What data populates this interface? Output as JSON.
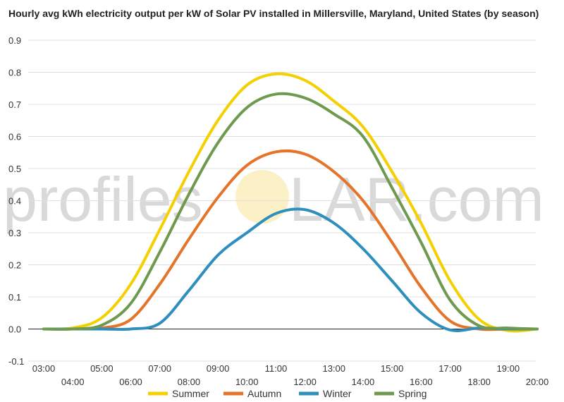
{
  "chart_data": {
    "type": "line",
    "title": "Hourly avg kWh electricity output per kW of Solar PV installed in Millersville, Maryland, United States (by season)",
    "xlabel": "",
    "ylabel": "",
    "x_ticks": [
      "03:00",
      "04:00",
      "05:00",
      "06:00",
      "07:00",
      "08:00",
      "09:00",
      "10:00",
      "11:00",
      "12:00",
      "13:00",
      "14:00",
      "15:00",
      "16:00",
      "17:00",
      "18:00",
      "19:00",
      "20:00"
    ],
    "y_ticks": [
      "0.9",
      "0.8",
      "0.7",
      "0.6",
      "0.5",
      "0.4",
      "0.3",
      "0.2",
      "0.1",
      "0.0",
      "-0.1"
    ],
    "ylim": [
      -0.1,
      0.9
    ],
    "grid": true,
    "legend_position": "bottom",
    "series": [
      {
        "name": "Summer",
        "color": "#f5d000",
        "values": [
          0.0,
          0.003,
          0.035,
          0.14,
          0.31,
          0.49,
          0.65,
          0.76,
          0.795,
          0.775,
          0.71,
          0.63,
          0.49,
          0.33,
          0.15,
          0.03,
          -0.005,
          0.0
        ]
      },
      {
        "name": "Autumn",
        "color": "#e3742a",
        "values": [
          0.0,
          0.0,
          0.003,
          0.03,
          0.14,
          0.28,
          0.41,
          0.51,
          0.552,
          0.545,
          0.49,
          0.4,
          0.27,
          0.13,
          0.025,
          0.0,
          0.0,
          0.0
        ]
      },
      {
        "name": "Winter",
        "color": "#2e8fbd",
        "values": [
          0.0,
          0.0,
          0.0,
          0.0,
          0.018,
          0.12,
          0.23,
          0.3,
          0.36,
          0.372,
          0.33,
          0.25,
          0.15,
          0.05,
          -0.003,
          0.003,
          0.0,
          0.0
        ]
      },
      {
        "name": "Spring",
        "color": "#6e9a4f",
        "values": [
          0.0,
          0.0,
          0.012,
          0.08,
          0.24,
          0.42,
          0.58,
          0.69,
          0.732,
          0.72,
          0.67,
          0.6,
          0.44,
          0.27,
          0.09,
          0.01,
          0.003,
          0.0
        ]
      }
    ]
  },
  "watermark": {
    "left": "profiles",
    "right": "LAR.com"
  }
}
